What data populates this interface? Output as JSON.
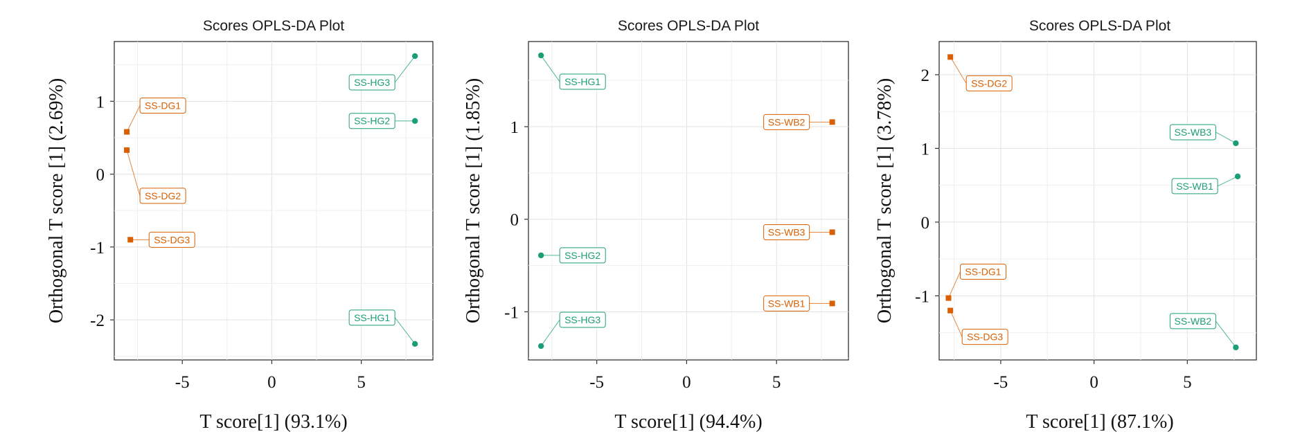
{
  "chart_data": [
    {
      "type": "scatter",
      "title": "Scores OPLS-DA Plot",
      "xlabel": "T score[1] (93.1%)",
      "ylabel": "Orthogonal T score [1] (2.69%)",
      "xlim": [
        -8.8,
        9.0
      ],
      "ylim": [
        -2.55,
        1.82
      ],
      "xticks": [
        -5,
        0,
        5
      ],
      "yticks": [
        1,
        0,
        -1,
        -2
      ],
      "grid": true,
      "series": [
        {
          "color": "#d95f02",
          "marker": "square",
          "points": [
            {
              "label": "SS-DG1",
              "x": -8.1,
              "y": 0.58
            },
            {
              "label": "SS-DG2",
              "x": -8.1,
              "y": 0.33
            },
            {
              "label": "SS-DG3",
              "x": -7.9,
              "y": -0.9
            }
          ]
        },
        {
          "color": "#1b9e77",
          "marker": "circle",
          "points": [
            {
              "label": "SS-HG3",
              "x": 8.0,
              "y": 1.62
            },
            {
              "label": "SS-HG2",
              "x": 8.0,
              "y": 0.73
            },
            {
              "label": "SS-HG1",
              "x": 8.0,
              "y": -2.33
            }
          ]
        }
      ]
    },
    {
      "type": "scatter",
      "title": "Scores OPLS-DA Plot",
      "xlabel": "T score[1] (94.4%)",
      "ylabel": "Orthogonal T score [1] (1.85%)",
      "xlim": [
        -8.8,
        9.0
      ],
      "ylim": [
        -1.52,
        1.92
      ],
      "xticks": [
        -5,
        0,
        5
      ],
      "yticks": [
        1,
        0,
        -1
      ],
      "grid": true,
      "series": [
        {
          "color": "#1b9e77",
          "marker": "circle",
          "points": [
            {
              "label": "SS-HG1",
              "x": -8.1,
              "y": 1.77
            },
            {
              "label": "SS-HG2",
              "x": -8.1,
              "y": -0.39
            },
            {
              "label": "SS-HG3",
              "x": -8.1,
              "y": -1.37
            }
          ]
        },
        {
          "color": "#d95f02",
          "marker": "square",
          "points": [
            {
              "label": "SS-WB2",
              "x": 8.1,
              "y": 1.05
            },
            {
              "label": "SS-WB3",
              "x": 8.1,
              "y": -0.14
            },
            {
              "label": "SS-WB1",
              "x": 8.1,
              "y": -0.91
            }
          ]
        }
      ]
    },
    {
      "type": "scatter",
      "title": "Scores OPLS-DA Plot",
      "xlabel": "T score[1] (87.1%)",
      "ylabel": "Orthogonal T score [1] (3.78%)",
      "xlim": [
        -8.3,
        8.7
      ],
      "ylim": [
        -1.87,
        2.45
      ],
      "xticks": [
        -5,
        0,
        5
      ],
      "yticks": [
        2,
        1,
        0,
        -1
      ],
      "grid": true,
      "series": [
        {
          "color": "#d95f02",
          "marker": "square",
          "points": [
            {
              "label": "SS-DG2",
              "x": -7.7,
              "y": 2.24
            },
            {
              "label": "SS-DG1",
              "x": -7.8,
              "y": -1.03
            },
            {
              "label": "SS-DG3",
              "x": -7.7,
              "y": -1.2
            }
          ]
        },
        {
          "color": "#1b9e77",
          "marker": "circle",
          "points": [
            {
              "label": "SS-WB3",
              "x": 7.6,
              "y": 1.07
            },
            {
              "label": "SS-WB1",
              "x": 7.7,
              "y": 0.62
            },
            {
              "label": "SS-WB2",
              "x": 7.6,
              "y": -1.7
            }
          ]
        }
      ]
    }
  ]
}
